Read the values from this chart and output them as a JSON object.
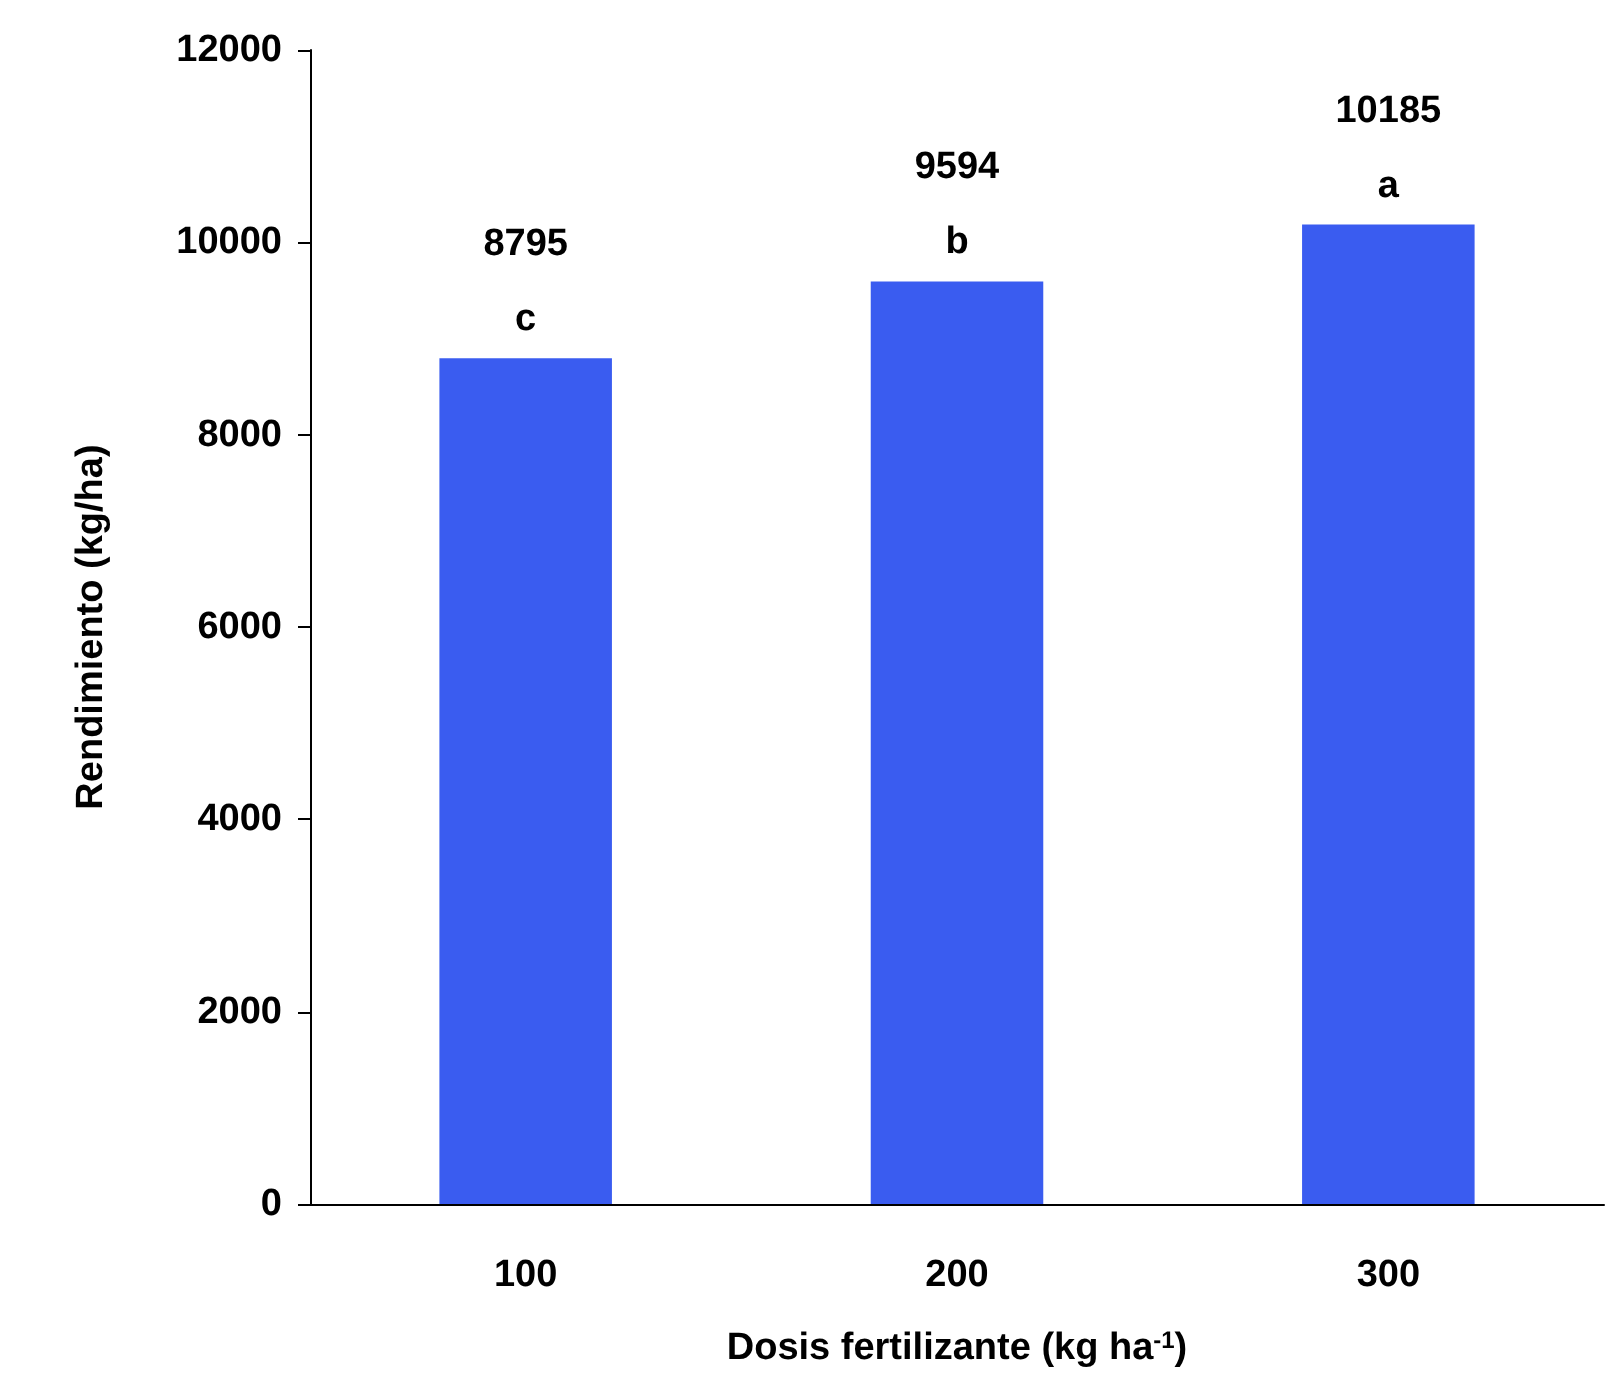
{
  "chart_data": {
    "type": "bar",
    "xlabel": "Dosis fertilizante (kg ha$^{-1}$)",
    "ylabel": "Rendimiento (kg/ha)",
    "categories": [
      "100",
      "200",
      "300"
    ],
    "values": [
      8795,
      9594,
      10185
    ],
    "color": "#3a5cf0",
    "ylim": [
      0,
      12000
    ],
    "yticks": [
      0,
      2000,
      4000,
      6000,
      8000,
      10000,
      12000
    ],
    "data_labels": true,
    "grid": false,
    "annotations": [
      {
        "text": "c",
        "x": "100",
        "y": 8795
      },
      {
        "text": "b",
        "x": "200",
        "y": 9594
      },
      {
        "text": "a",
        "x": "300",
        "y": 10185
      }
    ]
  }
}
